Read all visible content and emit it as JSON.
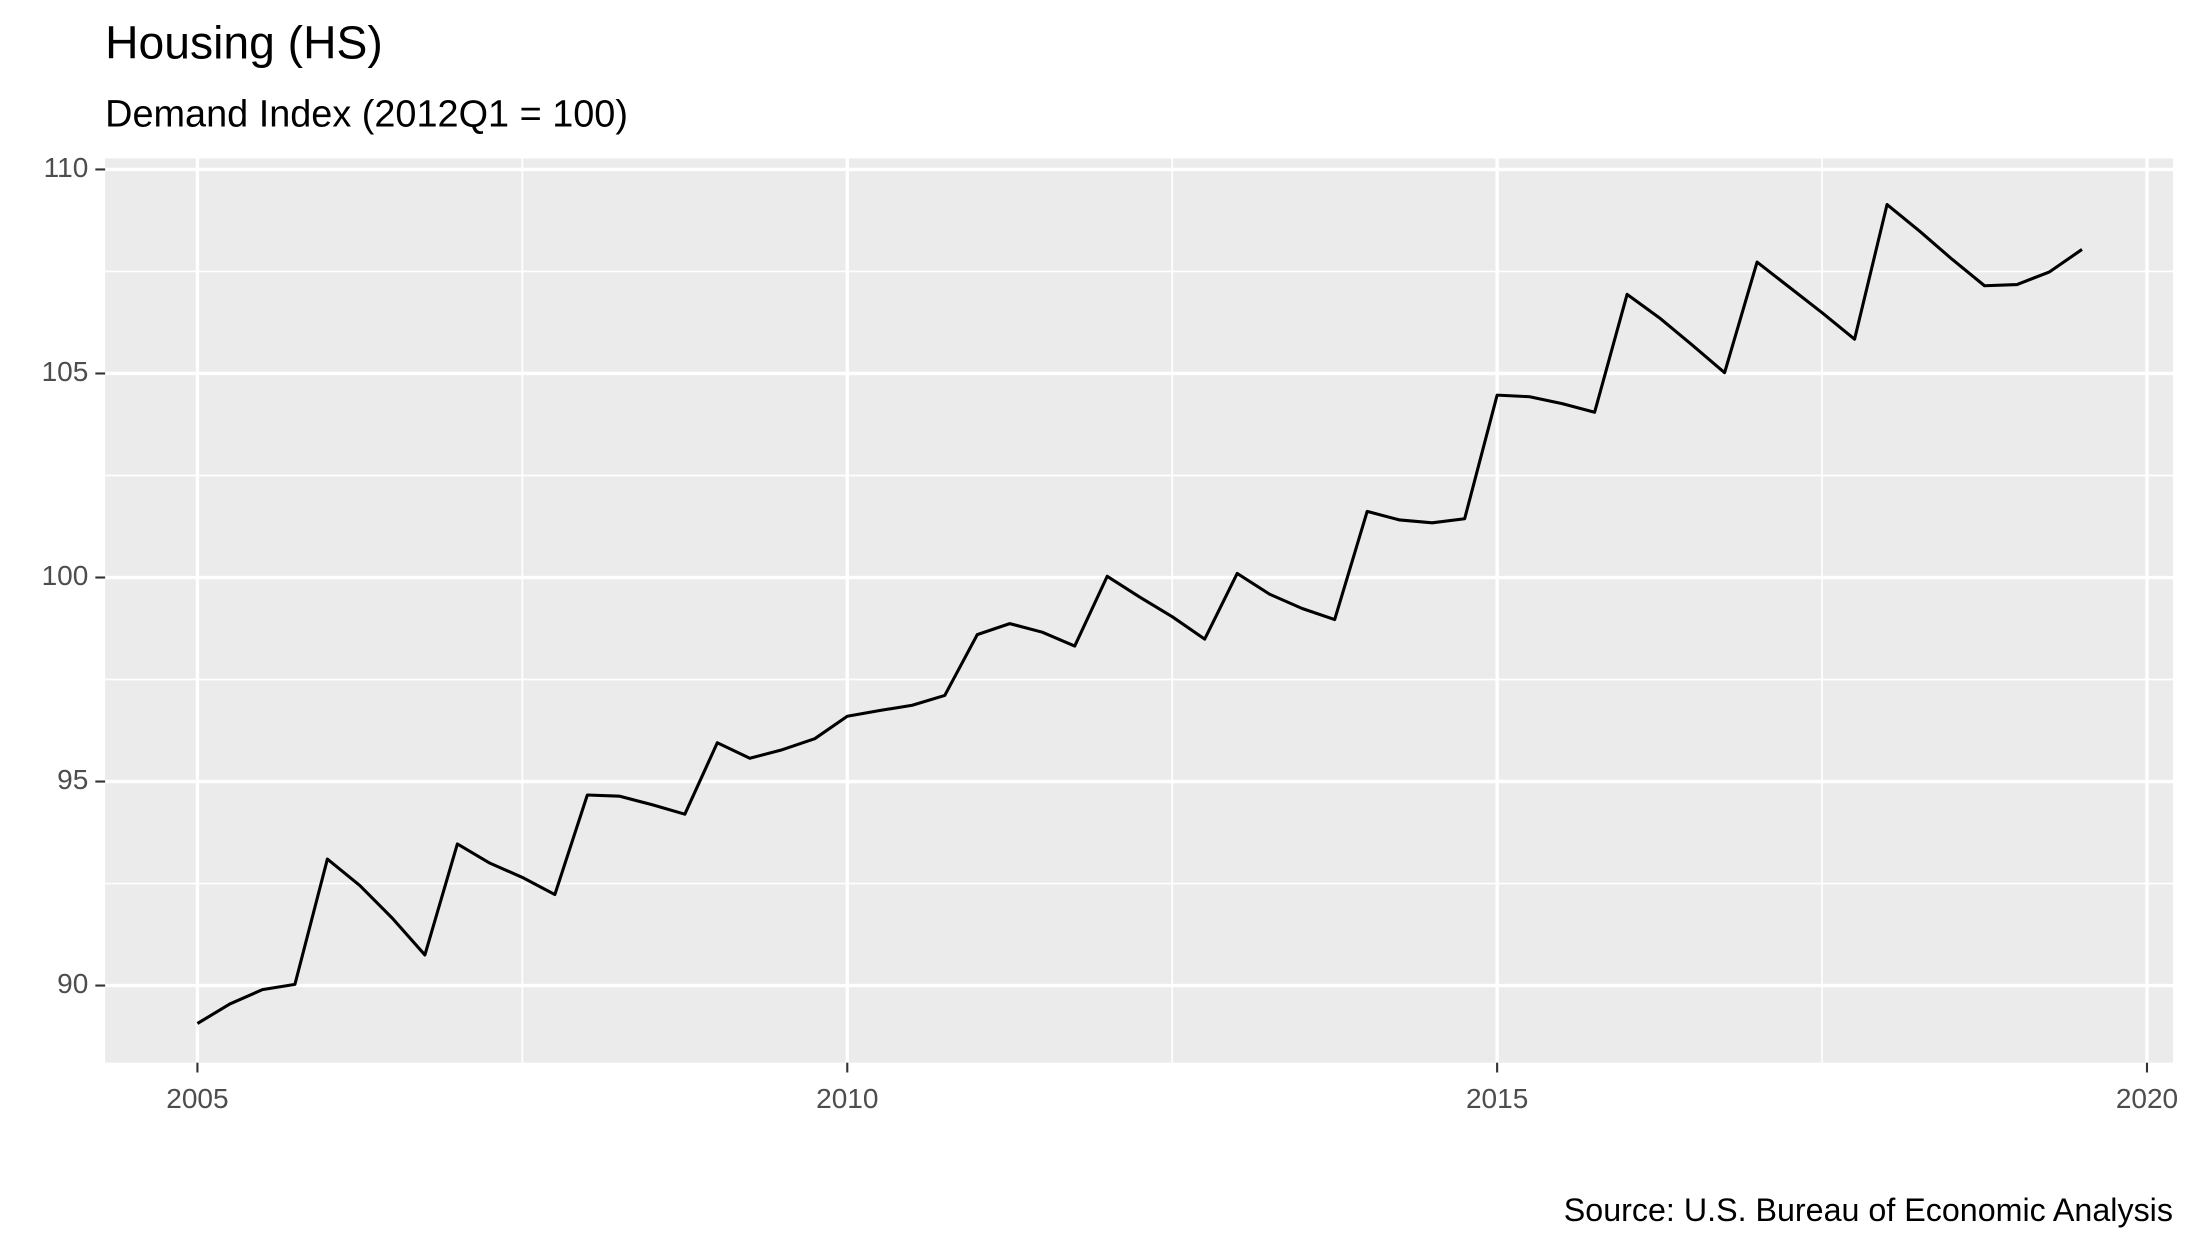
{
  "chart_data": {
    "type": "line",
    "title": "Housing (HS)",
    "subtitle": "Demand Index (2012Q1 = 100)",
    "caption": "Source: U.S. Bureau of Economic Analysis",
    "x": [
      2005,
      2005.25,
      2005.5,
      2005.75,
      2006,
      2006.25,
      2006.5,
      2006.75,
      2007,
      2007.25,
      2007.5,
      2007.75,
      2008,
      2008.25,
      2008.5,
      2008.75,
      2009,
      2009.25,
      2009.5,
      2009.75,
      2010,
      2010.25,
      2010.5,
      2010.75,
      2011,
      2011.25,
      2011.5,
      2011.75,
      2012,
      2012.25,
      2012.5,
      2012.75,
      2013,
      2013.25,
      2013.5,
      2013.75,
      2014,
      2014.25,
      2014.5,
      2014.75,
      2015,
      2015.25,
      2015.5,
      2015.75,
      2016,
      2016.25,
      2016.5,
      2016.75,
      2017,
      2017.25,
      2017.5,
      2017.75,
      2018,
      2018.25,
      2018.5,
      2018.75,
      2019,
      2019.25,
      2019.5
    ],
    "series": [
      {
        "name": "Housing",
        "color": "#000000",
        "values": [
          89.07,
          89.55,
          89.9,
          90.03,
          93.1,
          92.45,
          91.65,
          90.75,
          93.47,
          93.0,
          92.65,
          92.23,
          94.67,
          94.64,
          94.43,
          94.2,
          95.95,
          95.57,
          95.78,
          96.05,
          96.6,
          96.74,
          96.87,
          97.11,
          98.6,
          98.87,
          98.66,
          98.32,
          100.03,
          99.52,
          99.04,
          98.49,
          100.1,
          99.59,
          99.24,
          98.97,
          101.62,
          101.41,
          101.34,
          101.44,
          104.47,
          104.43,
          104.26,
          104.05,
          106.94,
          106.36,
          105.7,
          105.02,
          107.73,
          107.11,
          106.49,
          105.84,
          109.14,
          108.49,
          107.8,
          107.15,
          107.18,
          107.49,
          108.04
        ]
      }
    ],
    "xlim": [
      2004.29,
      2020.2
    ],
    "xticks": [
      2005,
      2010,
      2015,
      2020
    ],
    "ylim": [
      88.11,
      110.27
    ],
    "yticks": [
      90,
      95,
      100,
      105,
      110
    ],
    "grid": true
  }
}
